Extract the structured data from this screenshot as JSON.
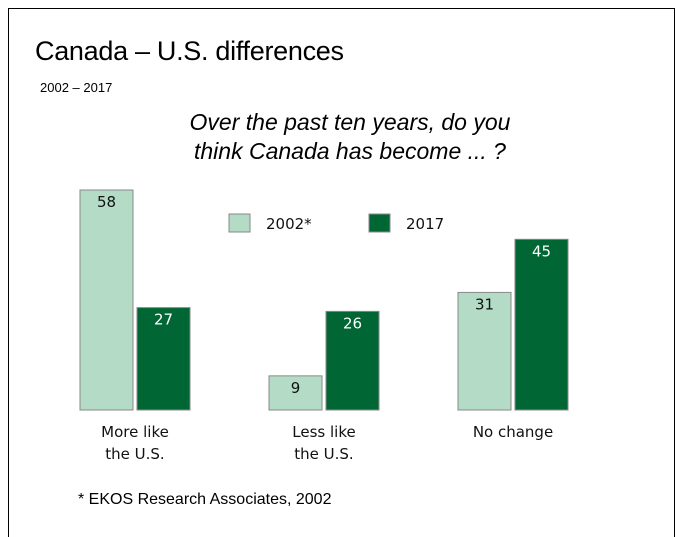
{
  "header": {
    "title": "Canada – U.S. differences",
    "subtitle": "2002 – 2017",
    "question_line1": "Over the past ten years, do you",
    "question_line2": "think Canada has become ... ?"
  },
  "footnote": "* EKOS Research Associates, 2002",
  "colors": {
    "series_2002": "#b3dbc6",
    "series_2017": "#006633",
    "bar_outline": "#8a8a8a"
  },
  "chart_data": {
    "type": "bar",
    "categories": [
      [
        "More like",
        "the U.S."
      ],
      [
        "Less like",
        "the U.S."
      ],
      [
        "No change"
      ]
    ],
    "series": [
      {
        "name": "2002*",
        "values": [
          58,
          9,
          31
        ]
      },
      {
        "name": "2017",
        "values": [
          27,
          26,
          45
        ]
      }
    ],
    "ylim": [
      0,
      58
    ],
    "grid": false,
    "legend": "top-center"
  }
}
